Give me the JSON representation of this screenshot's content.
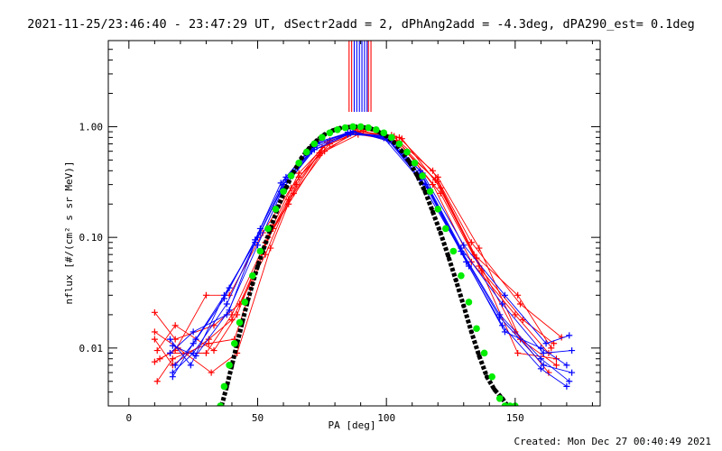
{
  "chart_data": {
    "type": "scatter",
    "title": "2021-11-25/23:46:40 - 23:47:29 UT, dSectr2add = 2, dPhAng2add = -4.3deg, dPA290_est=  0.1deg",
    "xlabel": "PA [deg]",
    "ylabel": "nflux [#/(cm² s sr MeV)]",
    "footer": "Created: Mon Dec 27 00:40:49 2021",
    "xlim": [
      -8,
      183
    ],
    "ylim": [
      0.003,
      6
    ],
    "yscale": "log",
    "x_ticks": [
      0,
      50,
      100,
      150
    ],
    "x_tick_labels": [
      "0",
      "50",
      "100",
      "150"
    ],
    "y_ticks": [
      0.01,
      0.1,
      1.0
    ],
    "y_tick_labels": [
      "0.01",
      "0.10",
      "1.00"
    ],
    "grid": false,
    "legend": "none",
    "colors": {
      "red": "#ff0000",
      "blue": "#0000ff",
      "green": "#00ee00",
      "black": "#000000"
    },
    "vertical_markers": [
      {
        "color": "#ff0000",
        "x": [
          85.5,
          86.5,
          93.0,
          94.0
        ]
      },
      {
        "color": "#0000ff",
        "x": [
          87.5,
          88.5,
          89.5,
          90.5,
          91.5,
          92.5
        ]
      }
    ],
    "green_model": {
      "x": [
        35.5,
        37,
        39,
        41,
        43,
        45,
        48,
        51,
        54,
        57,
        60,
        63,
        66,
        69,
        72,
        75,
        78,
        81,
        84,
        87,
        90,
        93,
        96,
        99,
        102,
        105,
        108,
        111,
        114,
        117,
        120,
        123,
        126,
        129,
        132,
        135,
        138,
        141,
        144,
        146,
        148,
        150
      ],
      "y": [
        0.003,
        0.0045,
        0.007,
        0.011,
        0.017,
        0.026,
        0.045,
        0.075,
        0.12,
        0.18,
        0.26,
        0.36,
        0.47,
        0.59,
        0.7,
        0.8,
        0.88,
        0.94,
        0.98,
        1.0,
        1.0,
        0.98,
        0.94,
        0.88,
        0.8,
        0.7,
        0.59,
        0.47,
        0.36,
        0.26,
        0.18,
        0.12,
        0.075,
        0.045,
        0.026,
        0.015,
        0.009,
        0.0055,
        0.0035,
        0.003,
        0.003,
        0.003
      ]
    },
    "black_model": {
      "x": [
        36,
        38,
        40,
        42,
        44,
        46,
        48,
        50,
        52,
        55,
        58,
        61,
        64,
        67,
        70,
        73,
        76,
        79,
        82,
        85,
        88,
        91,
        94,
        97,
        100,
        103,
        106,
        109,
        112,
        115,
        118,
        121,
        124,
        127,
        130,
        133,
        136,
        139,
        142,
        145,
        147,
        149
      ],
      "y": [
        0.003,
        0.0045,
        0.007,
        0.011,
        0.017,
        0.026,
        0.038,
        0.055,
        0.075,
        0.12,
        0.19,
        0.28,
        0.39,
        0.52,
        0.64,
        0.75,
        0.85,
        0.92,
        0.97,
        0.99,
        1.0,
        0.99,
        0.96,
        0.9,
        0.82,
        0.72,
        0.6,
        0.48,
        0.36,
        0.26,
        0.17,
        0.11,
        0.068,
        0.041,
        0.024,
        0.014,
        0.0085,
        0.0055,
        0.0042,
        0.0035,
        0.003,
        0.003
      ]
    },
    "series": [
      {
        "color": "#ff0000",
        "x": [
          10,
          16,
          30,
          40,
          53,
          62,
          74,
          88,
          103,
          118,
          133,
          150,
          163
        ],
        "y": [
          0.0075,
          0.009,
          0.009,
          0.02,
          0.09,
          0.2,
          0.55,
          0.92,
          0.82,
          0.3,
          0.06,
          0.02,
          0.009
        ]
      },
      {
        "color": "#ff0000",
        "x": [
          10,
          18,
          33,
          43,
          56,
          66,
          78,
          91,
          105,
          120,
          136,
          152,
          166
        ],
        "y": [
          0.021,
          0.012,
          0.016,
          0.025,
          0.12,
          0.35,
          0.7,
          0.95,
          0.8,
          0.35,
          0.08,
          0.012,
          0.007
        ]
      },
      {
        "color": "#ff0000",
        "x": [
          11,
          17,
          31,
          41,
          54,
          64,
          76,
          89,
          104,
          119,
          134,
          151,
          164
        ],
        "y": [
          0.005,
          0.008,
          0.011,
          0.012,
          0.1,
          0.25,
          0.6,
          0.85,
          0.75,
          0.33,
          0.07,
          0.03,
          0.01
        ]
      },
      {
        "color": "#ff0000",
        "x": [
          10,
          19,
          32,
          42,
          55,
          65,
          77,
          90,
          106,
          121,
          137,
          153,
          165
        ],
        "y": [
          0.014,
          0.01,
          0.006,
          0.009,
          0.08,
          0.3,
          0.72,
          0.98,
          0.78,
          0.28,
          0.05,
          0.018,
          0.011
        ]
      },
      {
        "color": "#ff0000",
        "x": [
          12,
          18,
          30,
          39,
          52,
          63,
          75,
          89,
          104,
          120,
          135,
          150,
          163
        ],
        "y": [
          0.008,
          0.0095,
          0.03,
          0.03,
          0.11,
          0.28,
          0.65,
          0.9,
          0.7,
          0.32,
          0.065,
          0.014,
          0.006
        ]
      },
      {
        "color": "#ff0000",
        "x": [
          10,
          17,
          31,
          40,
          53,
          62,
          74,
          88,
          102,
          118,
          133,
          152,
          168
        ],
        "y": [
          0.012,
          0.007,
          0.012,
          0.018,
          0.07,
          0.22,
          0.58,
          0.88,
          0.84,
          0.4,
          0.09,
          0.025,
          0.0125
        ]
      },
      {
        "color": "#ff0000",
        "x": [
          11,
          18,
          33,
          42,
          56,
          66,
          78,
          91,
          105,
          121,
          136,
          151,
          166
        ],
        "y": [
          0.0095,
          0.016,
          0.0095,
          0.02,
          0.13,
          0.38,
          0.75,
          0.92,
          0.72,
          0.25,
          0.055,
          0.009,
          0.008
        ]
      },
      {
        "color": "#0000ff",
        "x": [
          17,
          25,
          38,
          50,
          60,
          72,
          86,
          100,
          114,
          130,
          144,
          160,
          171
        ],
        "y": [
          0.006,
          0.009,
          0.025,
          0.1,
          0.3,
          0.65,
          0.88,
          0.8,
          0.35,
          0.07,
          0.02,
          0.008,
          0.005
        ]
      },
      {
        "color": "#0000ff",
        "x": [
          16,
          24,
          37,
          49,
          59,
          71,
          85,
          99,
          113,
          129,
          145,
          161,
          172
        ],
        "y": [
          0.012,
          0.007,
          0.03,
          0.09,
          0.26,
          0.6,
          0.85,
          0.82,
          0.4,
          0.08,
          0.025,
          0.009,
          0.0095
        ]
      },
      {
        "color": "#0000ff",
        "x": [
          17,
          26,
          39,
          51,
          61,
          73,
          87,
          101,
          115,
          131,
          145,
          160,
          170
        ],
        "y": [
          0.0055,
          0.012,
          0.035,
          0.11,
          0.33,
          0.7,
          0.9,
          0.76,
          0.3,
          0.06,
          0.016,
          0.0065,
          0.0045
        ]
      },
      {
        "color": "#0000ff",
        "x": [
          16,
          25,
          38,
          50,
          60,
          72,
          86,
          100,
          114,
          130,
          146,
          162,
          171
        ],
        "y": [
          0.009,
          0.014,
          0.02,
          0.085,
          0.28,
          0.62,
          0.87,
          0.83,
          0.38,
          0.085,
          0.03,
          0.011,
          0.013
        ]
      },
      {
        "color": "#0000ff",
        "x": [
          18,
          25,
          37,
          49,
          59,
          71,
          85,
          99,
          113,
          129,
          144,
          161,
          172
        ],
        "y": [
          0.007,
          0.011,
          0.028,
          0.095,
          0.31,
          0.66,
          0.89,
          0.79,
          0.33,
          0.075,
          0.019,
          0.007,
          0.006
        ]
      },
      {
        "color": "#0000ff",
        "x": [
          17,
          26,
          39,
          51,
          61,
          73,
          87,
          101,
          116,
          132,
          146,
          160,
          170
        ],
        "y": [
          0.0105,
          0.0085,
          0.022,
          0.12,
          0.35,
          0.72,
          0.91,
          0.74,
          0.28,
          0.055,
          0.014,
          0.01,
          0.007
        ]
      }
    ]
  }
}
